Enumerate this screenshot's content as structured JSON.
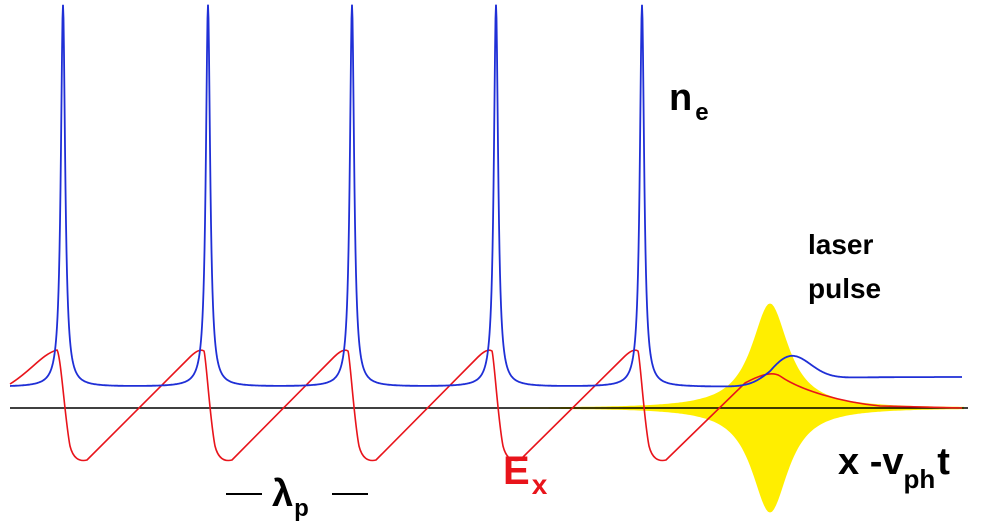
{
  "labels": {
    "density_symbol": "n",
    "density_subscript": "e",
    "field_symbol": "E",
    "field_subscript": "x",
    "pulse_line1": "laser",
    "pulse_line2": "pulse",
    "axis_part1": "x -v",
    "axis_subscript": "ph",
    "axis_part2": "t",
    "wavelength_symbol": "λ",
    "wavelength_subscript": "p"
  },
  "colors": {
    "density": "#1f2fd6",
    "field": "#e8141b",
    "pulse": "#ffee00",
    "axis": "#000000",
    "text": "#000000",
    "field_label": "#e8141b"
  },
  "wake": {
    "period_count": 5,
    "description_order": [
      "density spikes",
      "sawtooth field",
      "laser pulse envelope"
    ]
  }
}
